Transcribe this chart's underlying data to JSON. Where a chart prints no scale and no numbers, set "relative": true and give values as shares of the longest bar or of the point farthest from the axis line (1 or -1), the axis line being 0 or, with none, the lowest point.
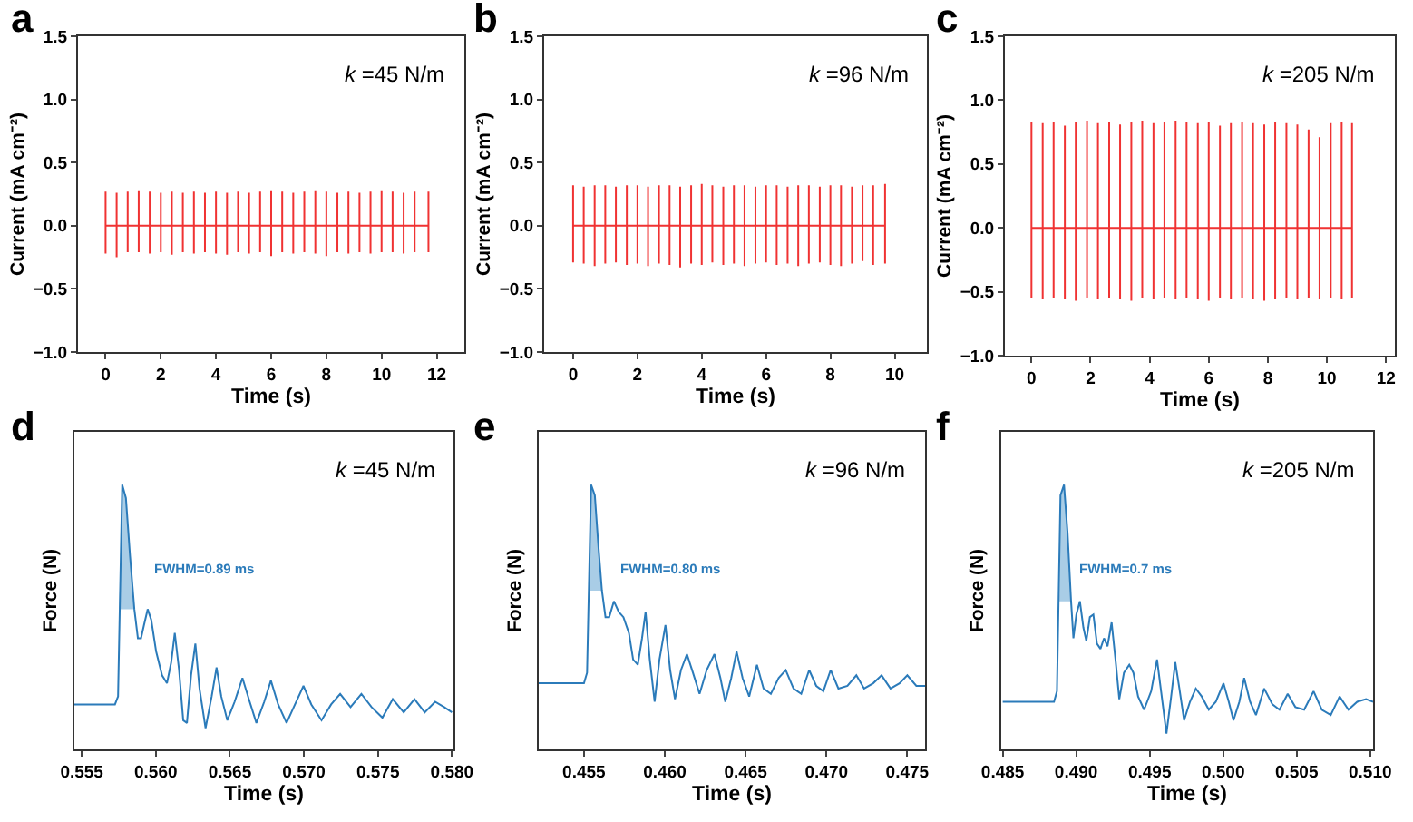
{
  "chart_data": [
    {
      "type": "line",
      "title": "a",
      "xlabel": "Time (s)",
      "ylabel": "Current (mA cm⁻²)",
      "annotations": [
        "k =45 N/m"
      ],
      "xlim": [
        -1,
        13
      ],
      "xticks": [
        0,
        2,
        4,
        6,
        8,
        10,
        12
      ],
      "ylim": [
        -1,
        1.5
      ],
      "yticks": [
        {
          "value": -1,
          "label": "−1.0"
        },
        {
          "value": -0.5,
          "label": "−0.5"
        },
        {
          "value": 0,
          "label": "0.0"
        },
        {
          "value": 0.5,
          "label": "0.5"
        },
        {
          "value": 1,
          "label": "1.0"
        },
        {
          "value": 1.5,
          "label": "1.5"
        }
      ],
      "series": [
        {
          "color": "#f03232",
          "x": [
            0,
            0,
            0,
            0,
            0.4,
            0.4,
            0.4,
            0.4,
            0.8,
            0.8,
            0.8,
            0.8,
            1.2,
            1.2,
            1.2,
            1.2,
            1.6,
            1.6,
            1.6,
            1.6,
            2,
            2,
            2,
            2,
            2.4,
            2.4,
            2.4,
            2.4,
            2.8,
            2.8,
            2.8,
            2.8,
            3.2,
            3.2,
            3.2,
            3.2,
            3.6,
            3.6,
            3.6,
            3.6,
            4,
            4,
            4,
            4,
            4.4,
            4.4,
            4.4,
            4.4,
            4.8,
            4.8,
            4.8,
            4.8,
            5.2,
            5.2,
            5.2,
            5.2,
            5.6,
            5.6,
            5.6,
            5.6,
            6,
            6,
            6,
            6,
            6.4,
            6.4,
            6.4,
            6.4,
            6.8,
            6.8,
            6.8,
            6.8,
            7.2,
            7.2,
            7.2,
            7.2,
            7.6,
            7.6,
            7.6,
            7.6,
            8,
            8,
            8,
            8,
            8.4,
            8.4,
            8.4,
            8.4,
            8.8,
            8.8,
            8.8,
            8.8,
            9.2,
            9.2,
            9.2,
            9.2,
            9.6,
            9.6,
            9.6,
            9.6,
            10,
            10,
            10,
            10,
            10.4,
            10.4,
            10.4,
            10.4,
            10.8,
            10.8,
            10.8,
            10.8,
            11.2,
            11.2,
            11.2,
            11.2,
            11.7,
            11.7,
            11.7,
            11.7
          ],
          "values": [
            0,
            0.27,
            -0.22,
            0,
            0,
            0.26,
            -0.25,
            0,
            0,
            0.27,
            -0.21,
            0,
            0,
            0.28,
            -0.21,
            0,
            0,
            0.27,
            -0.22,
            0,
            0,
            0.26,
            -0.21,
            0,
            0,
            0.27,
            -0.23,
            0,
            0,
            0.26,
            -0.21,
            0,
            0,
            0.27,
            -0.22,
            0,
            0,
            0.26,
            -0.21,
            0,
            0,
            0.27,
            -0.22,
            0,
            0,
            0.26,
            -0.23,
            0,
            0,
            0.27,
            -0.21,
            0,
            0,
            0.26,
            -0.22,
            0,
            0,
            0.27,
            -0.21,
            0,
            0,
            0.28,
            -0.24,
            0,
            0,
            0.27,
            -0.21,
            0,
            0,
            0.26,
            -0.22,
            0,
            0,
            0.27,
            -0.21,
            0,
            0,
            0.28,
            -0.22,
            0,
            0,
            0.27,
            -0.24,
            0,
            0,
            0.26,
            -0.21,
            0,
            0,
            0.27,
            -0.22,
            0,
            0,
            0.26,
            -0.21,
            0,
            0,
            0.27,
            -0.22,
            0,
            0,
            0.28,
            -0.21,
            0,
            0,
            0.27,
            -0.21,
            0,
            0,
            0.26,
            -0.22,
            0,
            0,
            0.27,
            -0.21,
            0,
            0,
            0.27,
            -0.21,
            0
          ]
        }
      ]
    },
    {
      "type": "line",
      "title": "b",
      "xlabel": "Time (s)",
      "ylabel": "Current (mA cm⁻²)",
      "annotations": [
        "k =96 N/m"
      ],
      "xlim": [
        -0.9,
        11
      ],
      "xticks": [
        0,
        2,
        4,
        6,
        8,
        10
      ],
      "ylim": [
        -1,
        1.5
      ],
      "yticks": [
        {
          "value": -1,
          "label": "−1.0"
        },
        {
          "value": -0.5,
          "label": "−0.5"
        },
        {
          "value": 0,
          "label": "0.0"
        },
        {
          "value": 0.5,
          "label": "0.5"
        },
        {
          "value": 1,
          "label": "1.0"
        },
        {
          "value": 1.5,
          "label": "1.5"
        }
      ],
      "series": [
        {
          "color": "#f03232",
          "x": [
            0,
            0,
            0,
            0,
            0.33,
            0.33,
            0.33,
            0.33,
            0.67,
            0.67,
            0.67,
            0.67,
            1,
            1,
            1,
            1,
            1.33,
            1.33,
            1.33,
            1.33,
            1.67,
            1.67,
            1.67,
            1.67,
            2,
            2,
            2,
            2,
            2.33,
            2.33,
            2.33,
            2.33,
            2.67,
            2.67,
            2.67,
            2.67,
            3,
            3,
            3,
            3,
            3.33,
            3.33,
            3.33,
            3.33,
            3.67,
            3.67,
            3.67,
            3.67,
            4,
            4,
            4,
            4,
            4.33,
            4.33,
            4.33,
            4.33,
            4.67,
            4.67,
            4.67,
            4.67,
            5,
            5,
            5,
            5,
            5.33,
            5.33,
            5.33,
            5.33,
            5.67,
            5.67,
            5.67,
            5.67,
            6,
            6,
            6,
            6,
            6.33,
            6.33,
            6.33,
            6.33,
            6.67,
            6.67,
            6.67,
            6.67,
            7,
            7,
            7,
            7,
            7.33,
            7.33,
            7.33,
            7.33,
            7.67,
            7.67,
            7.67,
            7.67,
            8,
            8,
            8,
            8,
            8.33,
            8.33,
            8.33,
            8.33,
            8.67,
            8.67,
            8.67,
            8.67,
            9,
            9,
            9,
            9,
            9.33,
            9.33,
            9.33,
            9.33,
            9.7,
            9.7,
            9.7,
            9.7
          ],
          "values": [
            0,
            0.32,
            -0.29,
            0,
            0,
            0.31,
            -0.3,
            0,
            0,
            0.32,
            -0.32,
            0,
            0,
            0.32,
            -0.3,
            0,
            0,
            0.31,
            -0.29,
            0,
            0,
            0.32,
            -0.31,
            0,
            0,
            0.32,
            -0.3,
            0,
            0,
            0.31,
            -0.32,
            0,
            0,
            0.32,
            -0.3,
            0,
            0,
            0.32,
            -0.31,
            0,
            0,
            0.31,
            -0.33,
            0,
            0,
            0.32,
            -0.3,
            0,
            0,
            0.33,
            -0.31,
            0,
            0,
            0.32,
            -0.29,
            0,
            0,
            0.31,
            -0.31,
            0,
            0,
            0.32,
            -0.3,
            0,
            0,
            0.32,
            -0.32,
            0,
            0,
            0.31,
            -0.3,
            0,
            0,
            0.32,
            -0.29,
            0,
            0,
            0.32,
            -0.31,
            0,
            0,
            0.31,
            -0.3,
            0,
            0,
            0.32,
            -0.32,
            0,
            0,
            0.32,
            -0.3,
            0,
            0,
            0.31,
            -0.29,
            0,
            0,
            0.32,
            -0.31,
            0,
            0,
            0.32,
            -0.32,
            0,
            0,
            0.31,
            -0.3,
            0,
            0,
            0.32,
            -0.28,
            0,
            0,
            0.32,
            -0.31,
            0,
            0,
            0.33,
            -0.3,
            0
          ]
        }
      ]
    },
    {
      "type": "line",
      "title": "c",
      "xlabel": "Time (s)",
      "ylabel": "Current (mA cm⁻²)",
      "annotations": [
        "k =205 N/m"
      ],
      "xlim": [
        -0.9,
        12.3
      ],
      "xticks": [
        0,
        2,
        4,
        6,
        8,
        10,
        12
      ],
      "ylim": [
        -1,
        1.5
      ],
      "yticks": [
        {
          "value": -1,
          "label": "−1.0"
        },
        {
          "value": -0.5,
          "label": "−0.5"
        },
        {
          "value": 0,
          "label": "0.0"
        },
        {
          "value": 0.5,
          "label": "0.5"
        },
        {
          "value": 1,
          "label": "1.0"
        },
        {
          "value": 1.5,
          "label": "1.5"
        }
      ],
      "series": [
        {
          "color": "#f03232",
          "x": [
            0,
            0,
            0,
            0,
            0.38,
            0.38,
            0.38,
            0.38,
            0.75,
            0.75,
            0.75,
            0.75,
            1.13,
            1.13,
            1.13,
            1.13,
            1.5,
            1.5,
            1.5,
            1.5,
            1.88,
            1.88,
            1.88,
            1.88,
            2.25,
            2.25,
            2.25,
            2.25,
            2.63,
            2.63,
            2.63,
            2.63,
            3,
            3,
            3,
            3,
            3.38,
            3.38,
            3.38,
            3.38,
            3.75,
            3.75,
            3.75,
            3.75,
            4.13,
            4.13,
            4.13,
            4.13,
            4.5,
            4.5,
            4.5,
            4.5,
            4.88,
            4.88,
            4.88,
            4.88,
            5.25,
            5.25,
            5.25,
            5.25,
            5.63,
            5.63,
            5.63,
            5.63,
            6,
            6,
            6,
            6,
            6.38,
            6.38,
            6.38,
            6.38,
            6.75,
            6.75,
            6.75,
            6.75,
            7.13,
            7.13,
            7.13,
            7.13,
            7.5,
            7.5,
            7.5,
            7.5,
            7.88,
            7.88,
            7.88,
            7.88,
            8.25,
            8.25,
            8.25,
            8.25,
            8.63,
            8.63,
            8.63,
            8.63,
            9,
            9,
            9,
            9,
            9.38,
            9.38,
            9.38,
            9.38,
            9.75,
            9.75,
            9.75,
            9.75,
            10.13,
            10.13,
            10.13,
            10.13,
            10.5,
            10.5,
            10.5,
            10.5,
            10.85,
            10.85,
            10.85,
            10.85
          ],
          "values": [
            0,
            0.83,
            -0.55,
            0,
            0,
            0.82,
            -0.56,
            0,
            0,
            0.83,
            -0.55,
            0,
            0,
            0.8,
            -0.56,
            0,
            0,
            0.83,
            -0.57,
            0,
            0,
            0.84,
            -0.55,
            0,
            0,
            0.82,
            -0.56,
            0,
            0,
            0.83,
            -0.55,
            0,
            0,
            0.81,
            -0.56,
            0,
            0,
            0.83,
            -0.57,
            0,
            0,
            0.84,
            -0.55,
            0,
            0,
            0.82,
            -0.56,
            0,
            0,
            0.83,
            -0.55,
            0,
            0,
            0.84,
            -0.56,
            0,
            0,
            0.83,
            -0.55,
            0,
            0,
            0.82,
            -0.56,
            0,
            0,
            0.83,
            -0.57,
            0,
            0,
            0.8,
            -0.55,
            0,
            0,
            0.82,
            -0.56,
            0,
            0,
            0.83,
            -0.55,
            0,
            0,
            0.82,
            -0.56,
            0,
            0,
            0.81,
            -0.57,
            0,
            0,
            0.83,
            -0.56,
            0,
            0,
            0.82,
            -0.55,
            0,
            0,
            0.81,
            -0.56,
            0,
            0,
            0.77,
            -0.55,
            0,
            0,
            0.71,
            -0.56,
            0,
            0,
            0.82,
            -0.55,
            0,
            0,
            0.83,
            -0.56,
            0,
            0,
            0.82,
            -0.55,
            0
          ]
        }
      ]
    },
    {
      "type": "line",
      "relative": true,
      "tick_labels": "x",
      "title": "d",
      "xlabel": "Time (s)",
      "ylabel": "Force (N)",
      "annotations": [
        "k =45 N/m",
        "FWHM=0.89 ms"
      ],
      "xlim": [
        0.5545,
        0.5801
      ],
      "xticks": [
        {
          "value": 0.555,
          "label": "0.555"
        },
        {
          "value": 0.56,
          "label": "0.560"
        },
        {
          "value": 0.565,
          "label": "0.565"
        },
        {
          "value": 0.57,
          "label": "0.570"
        },
        {
          "value": 0.575,
          "label": "0.575"
        },
        {
          "value": 0.58,
          "label": "0.580"
        }
      ],
      "series": [
        {
          "color": "#2b7bba",
          "x": [
            0.5545,
            0.55724,
            0.55745,
            0.55773,
            0.55798,
            0.55826,
            0.55855,
            0.55879,
            0.559,
            0.5592,
            0.55945,
            0.55969,
            0.56002,
            0.56042,
            0.56075,
            0.56104,
            0.56128,
            0.56157,
            0.56185,
            0.5621,
            0.56238,
            0.56267,
            0.56295,
            0.56336,
            0.56377,
            0.5641,
            0.56442,
            0.56483,
            0.56532,
            0.56585,
            0.56634,
            0.56679,
            0.56732,
            0.56777,
            0.56826,
            0.56883,
            0.5694,
            0.56997,
            0.5705,
            0.57119,
            0.57184,
            0.57245,
            0.57315,
            0.57388,
            0.57457,
            0.5753,
            0.576,
            0.57674,
            0.57747,
            0.57816,
            0.57886,
            0.57947,
            0.58
          ],
          "values": [
            0.17,
            0.17,
            0.2,
            1.0,
            0.95,
            0.73,
            0.53,
            0.42,
            0.42,
            0.47,
            0.53,
            0.49,
            0.37,
            0.28,
            0.25,
            0.33,
            0.44,
            0.3,
            0.11,
            0.1,
            0.28,
            0.4,
            0.23,
            0.08,
            0.2,
            0.31,
            0.2,
            0.11,
            0.18,
            0.27,
            0.18,
            0.1,
            0.18,
            0.26,
            0.17,
            0.1,
            0.17,
            0.24,
            0.17,
            0.11,
            0.17,
            0.21,
            0.16,
            0.21,
            0.16,
            0.12,
            0.19,
            0.14,
            0.19,
            0.14,
            0.18,
            0.16,
            0.14
          ]
        },
        {
          "type": "area",
          "color": "#a9cde6",
          "x": [
            0.55753,
            0.55773,
            0.55798,
            0.55826,
            0.55855
          ],
          "values": [
            0.53,
            1.0,
            0.95,
            0.73,
            0.53
          ]
        }
      ]
    },
    {
      "type": "line",
      "relative": true,
      "tick_labels": "x",
      "title": "e",
      "xlabel": "Time (s)",
      "ylabel": "Force (N)",
      "annotations": [
        "k =96 N/m",
        "FWHM=0.80 ms"
      ],
      "xlim": [
        0.4522,
        0.4761
      ],
      "xticks": [
        {
          "value": 0.455,
          "label": "0.455"
        },
        {
          "value": 0.46,
          "label": "0.460"
        },
        {
          "value": 0.465,
          "label": "0.465"
        },
        {
          "value": 0.47,
          "label": "0.470"
        },
        {
          "value": 0.475,
          "label": "0.475"
        }
      ],
      "series": [
        {
          "color": "#2b7bba",
          "x": [
            0.4522,
            0.455,
            0.45519,
            0.45544,
            0.45567,
            0.45589,
            0.45611,
            0.45633,
            0.45656,
            0.45685,
            0.45715,
            0.45744,
            0.45778,
            0.45804,
            0.45833,
            0.45859,
            0.45881,
            0.45907,
            0.45937,
            0.45967,
            0.46004,
            0.46033,
            0.46063,
            0.461,
            0.46137,
            0.46174,
            0.46215,
            0.46259,
            0.46307,
            0.46344,
            0.46374,
            0.46411,
            0.46444,
            0.46481,
            0.46522,
            0.4657,
            0.46611,
            0.46656,
            0.46704,
            0.46748,
            0.46796,
            0.46844,
            0.46893,
            0.46937,
            0.46981,
            0.47026,
            0.47074,
            0.4713,
            0.47185,
            0.47233,
            0.47289,
            0.47341,
            0.47396,
            0.47452,
            0.475,
            0.47556,
            0.4761
          ],
          "values": [
            0.25,
            0.25,
            0.29,
            1.0,
            0.96,
            0.77,
            0.6,
            0.5,
            0.5,
            0.56,
            0.52,
            0.5,
            0.44,
            0.34,
            0.32,
            0.42,
            0.52,
            0.34,
            0.18,
            0.34,
            0.47,
            0.3,
            0.19,
            0.3,
            0.36,
            0.29,
            0.21,
            0.3,
            0.36,
            0.27,
            0.18,
            0.27,
            0.37,
            0.27,
            0.2,
            0.32,
            0.23,
            0.21,
            0.27,
            0.3,
            0.23,
            0.21,
            0.3,
            0.24,
            0.22,
            0.3,
            0.23,
            0.24,
            0.28,
            0.23,
            0.25,
            0.28,
            0.23,
            0.25,
            0.28,
            0.24,
            0.24
          ]
        },
        {
          "type": "area",
          "color": "#a9cde6",
          "x": [
            0.4553,
            0.45544,
            0.45567,
            0.45589,
            0.45611
          ],
          "values": [
            0.6,
            1.0,
            0.96,
            0.77,
            0.6
          ]
        }
      ]
    },
    {
      "type": "line",
      "relative": true,
      "tick_labels": "x",
      "title": "f",
      "xlabel": "Time (s)",
      "ylabel": "Force (N)",
      "annotations": [
        "k =205 N/m",
        "FWHM=0.7 ms"
      ],
      "xlim": [
        0.4849,
        0.5102
      ],
      "xticks": [
        {
          "value": 0.485,
          "label": "0.485"
        },
        {
          "value": 0.49,
          "label": "0.490"
        },
        {
          "value": 0.495,
          "label": "0.495"
        },
        {
          "value": 0.5,
          "label": "0.500"
        },
        {
          "value": 0.505,
          "label": "0.505"
        },
        {
          "value": 0.51,
          "label": "0.510"
        }
      ],
      "series": [
        {
          "color": "#2b7bba",
          "x": [
            0.485,
            0.48849,
            0.48869,
            0.48893,
            0.48917,
            0.48941,
            0.48965,
            0.48981,
            0.49001,
            0.49025,
            0.49049,
            0.49069,
            0.49093,
            0.49117,
            0.49141,
            0.49165,
            0.49189,
            0.49213,
            0.49241,
            0.49269,
            0.49293,
            0.49325,
            0.49361,
            0.49389,
            0.49421,
            0.49462,
            0.4951,
            0.4955,
            0.49582,
            0.49614,
            0.49646,
            0.49674,
            0.49702,
            0.49734,
            0.49774,
            0.49814,
            0.49854,
            0.49902,
            0.4995,
            0.50002,
            0.50038,
            0.5007,
            0.5011,
            0.50143,
            0.50183,
            0.50223,
            0.50279,
            0.50335,
            0.50383,
            0.50439,
            0.50491,
            0.50551,
            0.50615,
            0.50671,
            0.50732,
            0.50792,
            0.50852,
            0.50912,
            0.50972,
            0.5102
          ],
          "values": [
            0.18,
            0.18,
            0.22,
            0.96,
            1.0,
            0.82,
            0.56,
            0.42,
            0.51,
            0.56,
            0.46,
            0.41,
            0.5,
            0.51,
            0.4,
            0.38,
            0.42,
            0.39,
            0.48,
            0.33,
            0.19,
            0.29,
            0.32,
            0.29,
            0.2,
            0.15,
            0.22,
            0.34,
            0.2,
            0.06,
            0.2,
            0.33,
            0.23,
            0.11,
            0.18,
            0.23,
            0.2,
            0.15,
            0.18,
            0.25,
            0.18,
            0.11,
            0.18,
            0.27,
            0.18,
            0.13,
            0.23,
            0.17,
            0.15,
            0.21,
            0.16,
            0.15,
            0.22,
            0.15,
            0.13,
            0.2,
            0.15,
            0.18,
            0.19,
            0.18
          ]
        },
        {
          "type": "area",
          "color": "#a9cde6",
          "x": [
            0.48885,
            0.48893,
            0.48917,
            0.48941,
            0.48965
          ],
          "values": [
            0.56,
            0.96,
            1.0,
            0.82,
            0.56
          ]
        }
      ]
    }
  ]
}
